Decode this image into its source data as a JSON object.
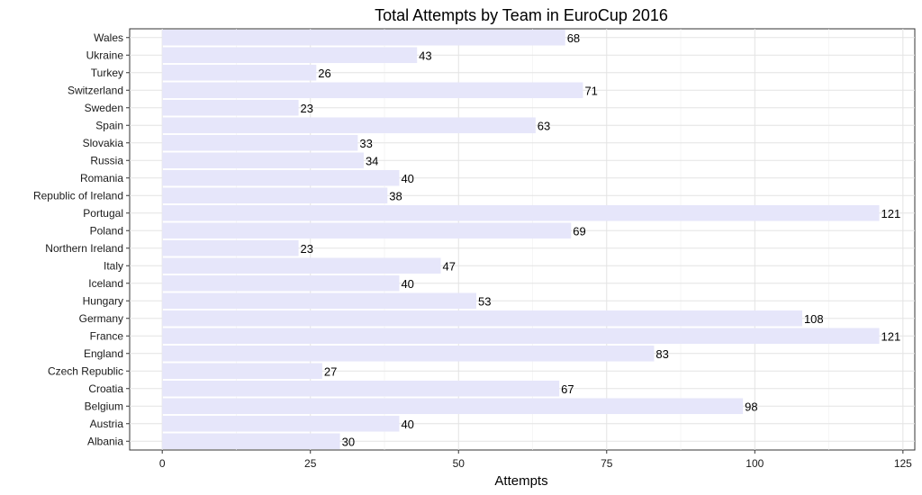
{
  "chart_data": {
    "type": "bar",
    "orientation": "horizontal",
    "title": "Total Attempts by Team in EuroCup 2016",
    "xlabel": "Attempts",
    "ylabel": "",
    "xlim": [
      -5.5,
      127
    ],
    "xticks": [
      0,
      25,
      50,
      75,
      100,
      125
    ],
    "grid": true,
    "bar_color": "#e6e6fa",
    "categories": [
      "Wales",
      "Ukraine",
      "Turkey",
      "Switzerland",
      "Sweden",
      "Spain",
      "Slovakia",
      "Russia",
      "Romania",
      "Republic of Ireland",
      "Portugal",
      "Poland",
      "Northern Ireland",
      "Italy",
      "Iceland",
      "Hungary",
      "Germany",
      "France",
      "England",
      "Czech Republic",
      "Croatia",
      "Belgium",
      "Austria",
      "Albania"
    ],
    "values": [
      68,
      43,
      26,
      71,
      23,
      63,
      33,
      34,
      40,
      38,
      121,
      69,
      23,
      47,
      40,
      53,
      108,
      121,
      83,
      27,
      67,
      98,
      40,
      30
    ]
  }
}
